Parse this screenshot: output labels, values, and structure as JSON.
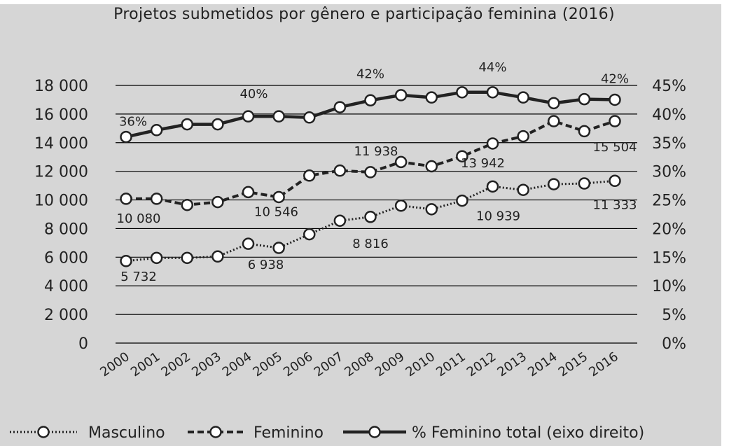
{
  "chart_data": {
    "type": "line",
    "title": "Projetos submetidos por gênero e participação feminina (2016)",
    "categories": [
      "2000",
      "2001",
      "2002",
      "2003",
      "2004",
      "2005",
      "2006",
      "2007",
      "2008",
      "2009",
      "2010",
      "2011",
      "2012",
      "2013",
      "2014",
      "2015",
      "2016"
    ],
    "left_axis": {
      "ylim": [
        0,
        18000
      ],
      "ticks": [
        0,
        2000,
        4000,
        6000,
        8000,
        10000,
        12000,
        14000,
        16000,
        18000
      ],
      "tick_labels": [
        "0",
        "2 000",
        "4 000",
        "6 000",
        "8 000",
        "10 000",
        "12 000",
        "14 000",
        "16 000",
        "18 000"
      ]
    },
    "right_axis": {
      "ylim": [
        0,
        45
      ],
      "ticks": [
        0,
        5,
        10,
        15,
        20,
        25,
        30,
        35,
        40,
        45
      ],
      "tick_labels": [
        "0%",
        "5%",
        "10%",
        "15%",
        "20%",
        "25%",
        "30%",
        "35%",
        "40%",
        "45%"
      ]
    },
    "grid": true,
    "legend_position": "bottom",
    "series": [
      {
        "name": "Masculino",
        "axis": "left",
        "style": "dotted",
        "values": [
          5732,
          5950,
          5950,
          6050,
          6938,
          6650,
          7600,
          8550,
          8816,
          9600,
          9350,
          9950,
          10939,
          10700,
          11100,
          11150,
          11333
        ],
        "labels": [
          {
            "index": 0,
            "text": "5 732"
          },
          {
            "index": 4,
            "text": "6 938"
          },
          {
            "index": 8,
            "text": "8 816"
          },
          {
            "index": 12,
            "text": "10 939"
          },
          {
            "index": 16,
            "text": "11 333"
          }
        ]
      },
      {
        "name": "Feminino",
        "axis": "left",
        "style": "dashed",
        "values": [
          10080,
          10080,
          9650,
          9850,
          10546,
          10200,
          11700,
          12050,
          11938,
          12650,
          12350,
          13050,
          13942,
          14450,
          15504,
          14800,
          15504
        ],
        "labels": [
          {
            "index": 0,
            "text": "10 080"
          },
          {
            "index": 4,
            "text": "10 546"
          },
          {
            "index": 8,
            "text": "11 938"
          },
          {
            "index": 12,
            "text": "13 942"
          },
          {
            "index": 16,
            "text": "15 504"
          }
        ]
      },
      {
        "name": "% Feminino total (eixo direito)",
        "axis": "right",
        "style": "solid",
        "values": [
          36,
          37.2,
          38.2,
          38.2,
          39.6,
          39.6,
          39.4,
          41.2,
          42.4,
          43.3,
          42.9,
          43.8,
          43.8,
          42.9,
          41.9,
          42.6,
          42.5
        ],
        "labels": [
          {
            "index": 0,
            "text": "36%"
          },
          {
            "index": 4,
            "text": "40%"
          },
          {
            "index": 8,
            "text": "42%"
          },
          {
            "index": 12,
            "text": "44%"
          },
          {
            "index": 16,
            "text": "42%"
          }
        ]
      }
    ]
  }
}
